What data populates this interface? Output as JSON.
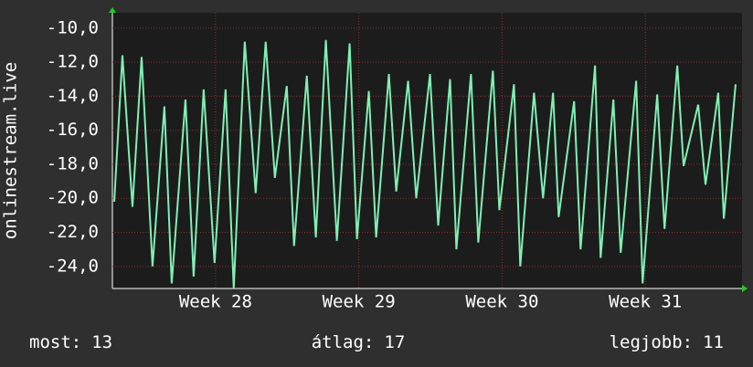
{
  "chart_data": {
    "type": "line",
    "y_label": "onlinestream.live",
    "series": [
      {
        "color": "#7ff0b4",
        "x": [
          27.293,
          27.35,
          27.42,
          27.484,
          27.56,
          27.643,
          27.694,
          27.79,
          27.847,
          27.917,
          27.993,
          28.07,
          28.127,
          28.204,
          28.28,
          28.35,
          28.414,
          28.497,
          28.548,
          28.637,
          28.7,
          28.77,
          28.847,
          28.936,
          28.987,
          29.07,
          29.121,
          29.21,
          29.261,
          29.344,
          29.401,
          29.497,
          29.554,
          29.637,
          29.681,
          29.783,
          29.834,
          29.936,
          29.981,
          30.083,
          30.127,
          30.223,
          30.286,
          30.356,
          30.395,
          30.503,
          30.548,
          30.649,
          30.688,
          30.777,
          30.828,
          30.936,
          30.981,
          31.083,
          31.134,
          31.223,
          31.267,
          31.369,
          31.42,
          31.509,
          31.548,
          31.63
        ],
        "values": [
          -20.2,
          -11.6,
          -20.5,
          -11.7,
          -24,
          -14.6,
          -25,
          -14.2,
          -24.6,
          -13.6,
          -23.8,
          -13.6,
          -25.3,
          -10.8,
          -19.7,
          -10.8,
          -18.8,
          -13.4,
          -22.8,
          -12.8,
          -22.3,
          -10.7,
          -22.5,
          -10.9,
          -22.4,
          -13.7,
          -22.3,
          -12.7,
          -19.6,
          -13.1,
          -20,
          -12.7,
          -21.6,
          -13,
          -23,
          -12.7,
          -22.6,
          -12.5,
          -20.7,
          -13.3,
          -24,
          -13.8,
          -20,
          -13.8,
          -21.1,
          -14.3,
          -23,
          -12.2,
          -23.5,
          -14.2,
          -23.2,
          -13.1,
          -25,
          -13.9,
          -21.8,
          -12.2,
          -18.1,
          -14.5,
          -19.2,
          -13.8,
          -21.2,
          -13.3
        ]
      }
    ],
    "xlim": [
      27.28,
      31.675
    ],
    "xticks": [
      {
        "value": 28,
        "label": "Week 28"
      },
      {
        "value": 29,
        "label": "Week 29"
      },
      {
        "value": 30,
        "label": "Week 30"
      },
      {
        "value": 31,
        "label": "Week 31"
      }
    ],
    "ylim": [
      -25.3,
      -9.1
    ],
    "yticks": [
      {
        "value": -10,
        "label": "-10,0"
      },
      {
        "value": -12,
        "label": "-12,0"
      },
      {
        "value": -14,
        "label": "-14,0"
      },
      {
        "value": -16,
        "label": "-16,0"
      },
      {
        "value": -18,
        "label": "-18,0"
      },
      {
        "value": -20,
        "label": "-20,0"
      },
      {
        "value": -22,
        "label": "-22,0"
      },
      {
        "value": -24,
        "label": "-24,0"
      }
    ],
    "grid": true,
    "stats": [
      {
        "label": "most:",
        "value": 13
      },
      {
        "label": "átlag:",
        "value": 17
      },
      {
        "label": "legjobb:",
        "value": 11
      }
    ]
  }
}
